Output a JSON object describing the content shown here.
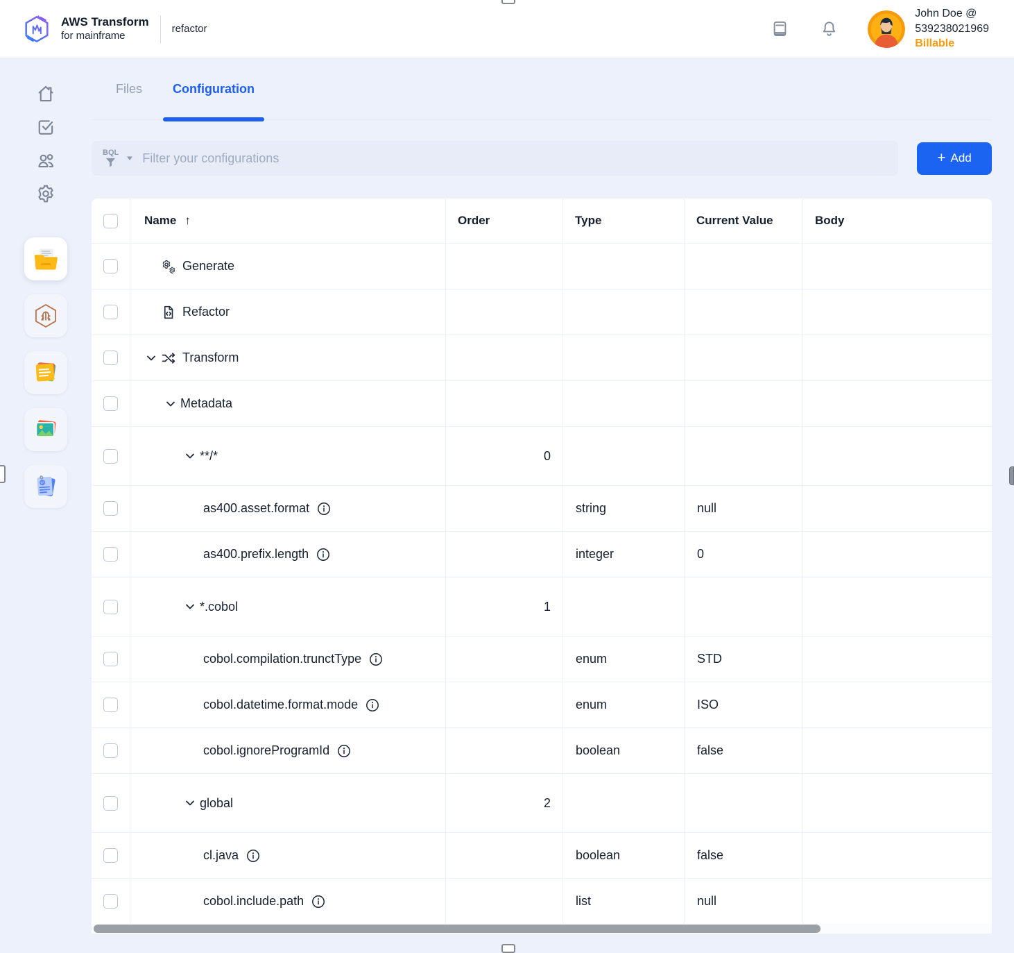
{
  "header": {
    "brand_title": "AWS Transform",
    "brand_subtitle": "for mainframe",
    "context": "refactor",
    "user_name": "John Doe @",
    "user_id": "539238021969",
    "user_status": "Billable"
  },
  "tabs": [
    {
      "label": "Files",
      "active": false
    },
    {
      "label": "Configuration",
      "active": true
    }
  ],
  "toolbar": {
    "filter_badge": "BQL",
    "filter_placeholder": "Filter your configurations",
    "add_icon": "+",
    "add_label": "Add"
  },
  "table": {
    "columns": [
      "Name",
      "Order",
      "Type",
      "Current Value",
      "Body"
    ],
    "sort_column": "Name",
    "sort_indicator": "↑",
    "rows": [
      {
        "name": "Generate",
        "icon": "gears",
        "chevron": false,
        "indent": 0,
        "order": "",
        "type": "",
        "value": "",
        "info": false,
        "tall": false
      },
      {
        "name": "Refactor",
        "icon": "file-code",
        "chevron": false,
        "indent": 0,
        "order": "",
        "type": "",
        "value": "",
        "info": false,
        "tall": false
      },
      {
        "name": "Transform",
        "icon": "shuffle",
        "chevron": true,
        "indent": 0,
        "order": "",
        "type": "",
        "value": "",
        "info": false,
        "tall": false
      },
      {
        "name": "Metadata",
        "icon": "",
        "chevron": true,
        "indent": 1,
        "order": "",
        "type": "",
        "value": "",
        "info": false,
        "tall": false
      },
      {
        "name": "**/*",
        "icon": "",
        "chevron": true,
        "indent": 2,
        "order": "0",
        "type": "",
        "value": "",
        "info": false,
        "tall": true
      },
      {
        "name": "as400.asset.format",
        "icon": "",
        "chevron": false,
        "indent": 3,
        "order": "",
        "type": "string",
        "value": "null",
        "info": true,
        "tall": false
      },
      {
        "name": "as400.prefix.length",
        "icon": "",
        "chevron": false,
        "indent": 3,
        "order": "",
        "type": "integer",
        "value": "0",
        "info": true,
        "tall": false
      },
      {
        "name": "*.cobol",
        "icon": "",
        "chevron": true,
        "indent": 2,
        "order": "1",
        "type": "",
        "value": "",
        "info": false,
        "tall": true
      },
      {
        "name": "cobol.compilation.trunctType",
        "icon": "",
        "chevron": false,
        "indent": 3,
        "order": "",
        "type": "enum",
        "value": "STD",
        "info": true,
        "tall": false
      },
      {
        "name": "cobol.datetime.format.mode",
        "icon": "",
        "chevron": false,
        "indent": 3,
        "order": "",
        "type": "enum",
        "value": "ISO",
        "info": true,
        "tall": false
      },
      {
        "name": "cobol.ignoreProgramId",
        "icon": "",
        "chevron": false,
        "indent": 3,
        "order": "",
        "type": "boolean",
        "value": "false",
        "info": true,
        "tall": false
      },
      {
        "name": "global",
        "icon": "",
        "chevron": true,
        "indent": 2,
        "order": "2",
        "type": "",
        "value": "",
        "info": false,
        "tall": true
      },
      {
        "name": "cl.java",
        "icon": "",
        "chevron": false,
        "indent": 3,
        "order": "",
        "type": "boolean",
        "value": "false",
        "info": true,
        "tall": false
      },
      {
        "name": "cobol.include.path",
        "icon": "",
        "chevron": false,
        "indent": 3,
        "order": "",
        "type": "list",
        "value": "null",
        "info": true,
        "tall": false
      }
    ]
  },
  "sidebar": {
    "nav_icons": [
      "home",
      "tasks",
      "users",
      "settings"
    ],
    "tool_icons": [
      "project-files",
      "transform-hexagon",
      "notes",
      "images",
      "documents"
    ],
    "active_tool": "project-files"
  },
  "colors": {
    "accent_blue": "#1b64f2",
    "billable_orange": "#f69b0c",
    "avatar_orange": "#ffb013",
    "page_background": "#edf1fb"
  }
}
